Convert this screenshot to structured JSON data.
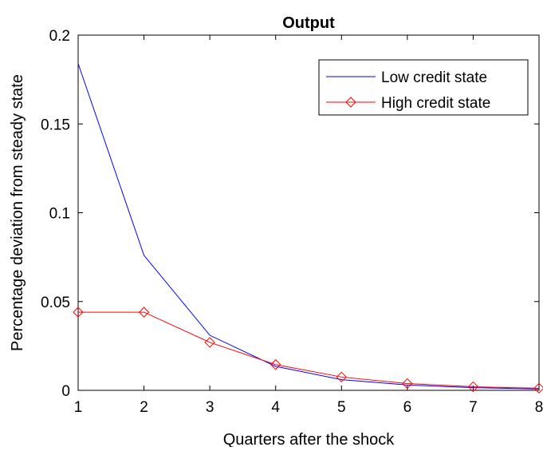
{
  "chart_data": {
    "type": "line",
    "title": "Output",
    "xlabel": "Quarters after the shock",
    "ylabel": "Percentage deviation from steady state",
    "xlim": [
      1,
      8
    ],
    "ylim": [
      0,
      0.2
    ],
    "x_ticks": [
      "1",
      "2",
      "3",
      "4",
      "5",
      "6",
      "7",
      "8"
    ],
    "y_ticks": [
      "0",
      "0.05",
      "0.1",
      "0.15",
      "0.2"
    ],
    "grid": false,
    "legend_position": "top-right",
    "x": [
      1,
      2,
      3,
      4,
      5,
      6,
      7,
      8
    ],
    "series": [
      {
        "name": "Low credit state",
        "color": "#0000ff",
        "marker": "none",
        "values": [
          0.184,
          0.076,
          0.031,
          0.0135,
          0.006,
          0.003,
          0.0015,
          0.0008
        ]
      },
      {
        "name": "High credit state",
        "color": "#ff0000",
        "marker": "diamond",
        "values": [
          0.044,
          0.044,
          0.027,
          0.0145,
          0.0075,
          0.0038,
          0.002,
          0.0012
        ]
      }
    ]
  }
}
